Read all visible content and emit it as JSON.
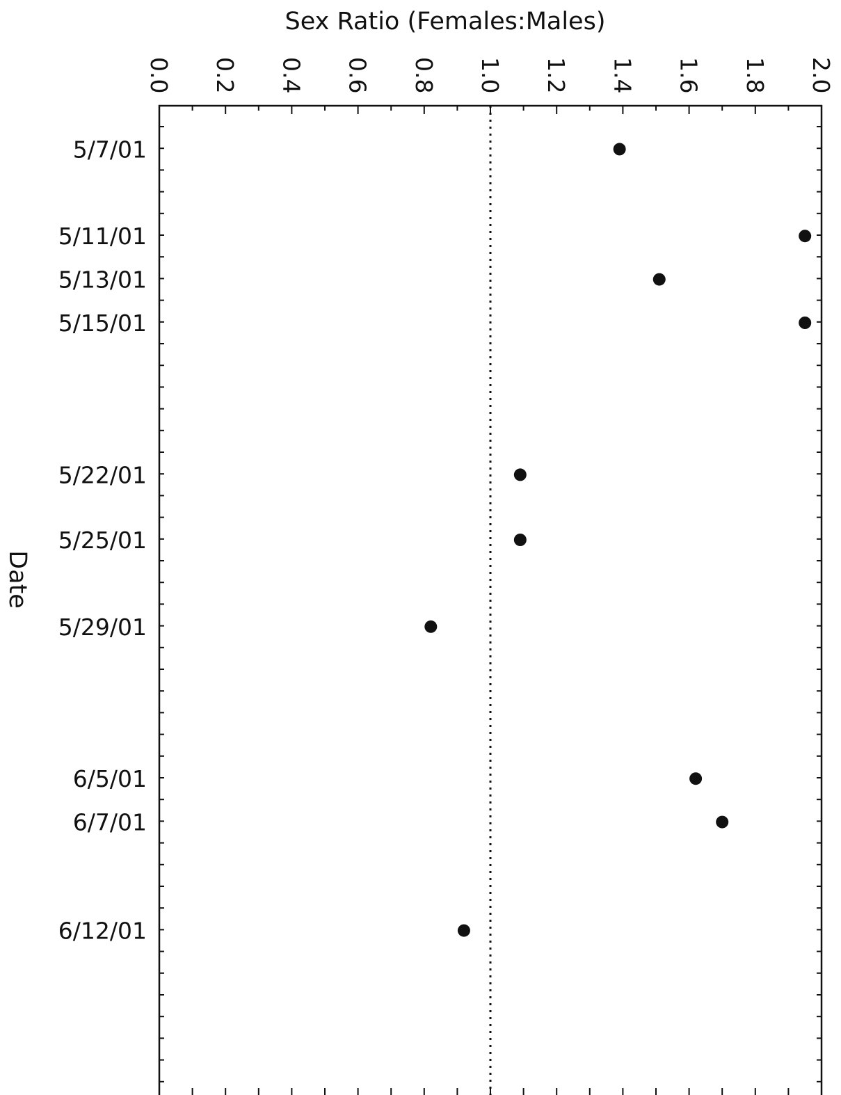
{
  "chart_data": {
    "type": "scatter",
    "title": "Sex Ratio (Females:Males)",
    "xlabel": "Sex Ratio (Females:Males)",
    "ylabel": "Date",
    "x_ticks": [
      "0.0",
      "0.2",
      "0.4",
      "0.6",
      "0.8",
      "1.0",
      "1.2",
      "1.4",
      "1.6",
      "1.8",
      "2.0"
    ],
    "xlim": [
      0.0,
      2.0
    ],
    "date_range": [
      "5/5/01",
      "6/18/01"
    ],
    "reference_line": 1.0,
    "date_labels": [
      "5/7/01",
      "5/11/01",
      "5/13/01",
      "5/15/01",
      "5/22/01",
      "5/25/01",
      "5/29/01",
      "6/5/01",
      "6/7/01",
      "6/12/01"
    ],
    "points": [
      {
        "date": "5/7/01",
        "value": 1.39
      },
      {
        "date": "5/11/01",
        "value": 1.95
      },
      {
        "date": "5/13/01",
        "value": 1.51
      },
      {
        "date": "5/15/01",
        "value": 1.95
      },
      {
        "date": "5/22/01",
        "value": 1.09
      },
      {
        "date": "5/25/01",
        "value": 1.09
      },
      {
        "date": "5/29/01",
        "value": 0.82
      },
      {
        "date": "6/5/01",
        "value": 1.62
      },
      {
        "date": "6/7/01",
        "value": 1.7
      },
      {
        "date": "6/12/01",
        "value": 0.92
      }
    ],
    "grid": false,
    "legend": "none",
    "marker_color": "#111111"
  }
}
